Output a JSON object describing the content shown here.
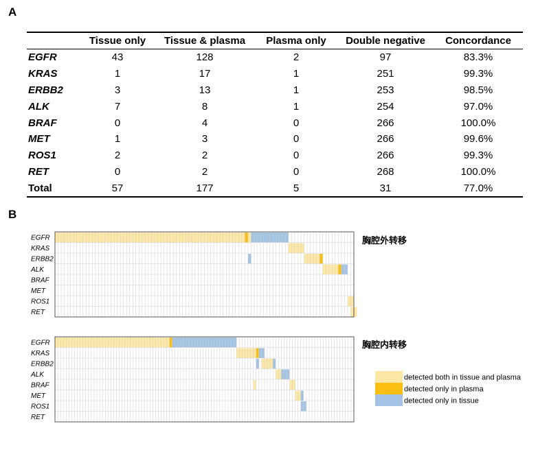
{
  "panel_a": {
    "label": "A",
    "columns": [
      "",
      "Tissue only",
      "Tissue & plasma",
      "Plasma only",
      "Double negative",
      "Concordance"
    ],
    "rows": [
      {
        "gene": "EGFR",
        "values": [
          "43",
          "128",
          "2",
          "97",
          "83.3%"
        ]
      },
      {
        "gene": "KRAS",
        "values": [
          "1",
          "17",
          "1",
          "251",
          "99.3%"
        ]
      },
      {
        "gene": "ERBB2",
        "values": [
          "3",
          "13",
          "1",
          "253",
          "98.5%"
        ]
      },
      {
        "gene": "ALK",
        "values": [
          "7",
          "8",
          "1",
          "254",
          "97.0%"
        ]
      },
      {
        "gene": "BRAF",
        "values": [
          "0",
          "4",
          "0",
          "266",
          "100.0%"
        ]
      },
      {
        "gene": "MET",
        "values": [
          "1",
          "3",
          "0",
          "266",
          "99.6%"
        ]
      },
      {
        "gene": "ROS1",
        "values": [
          "2",
          "2",
          "0",
          "266",
          "99.3%"
        ]
      },
      {
        "gene": "RET",
        "values": [
          "0",
          "2",
          "0",
          "268",
          "100.0%"
        ]
      }
    ],
    "total": {
      "label": "Total",
      "values": [
        "57",
        "177",
        "5",
        "31",
        "77.0%"
      ]
    }
  },
  "panel_b": {
    "label": "B",
    "genes": [
      "EGFR",
      "KRAS",
      "ERBB2",
      "ALK",
      "BRAF",
      "MET",
      "ROS1",
      "RET"
    ],
    "colors": {
      "both": "#fde7a4",
      "plasma": "#fbbf14",
      "tissue": "#a3c3e5",
      "grid": "#cfcfcf",
      "border": "#555555"
    },
    "groups": [
      {
        "title": "胸腔外转移",
        "n_samples": 96,
        "rows": [
          [
            [
              "both",
              0,
              61
            ],
            [
              "plasma",
              61,
              62
            ],
            [
              "both",
              62,
              63
            ],
            [
              "tissue",
              63,
              75
            ]
          ],
          [
            [
              "both",
              75,
              80
            ]
          ],
          [
            [
              "tissue",
              62,
              63
            ],
            [
              "both",
              80,
              85
            ],
            [
              "plasma",
              85,
              86
            ]
          ],
          [
            [
              "both",
              86,
              91
            ],
            [
              "plasma",
              91,
              92
            ],
            [
              "tissue",
              92,
              94
            ]
          ],
          [],
          [],
          [
            [
              "both",
              94,
              96
            ]
          ],
          [
            [
              "both",
              95,
              97
            ]
          ]
        ]
      },
      {
        "title": "胸腔内转移",
        "n_samples": 107,
        "rows": [
          [
            [
              "both",
              0,
              41
            ],
            [
              "plasma",
              41,
              42
            ],
            [
              "tissue",
              42,
              65
            ]
          ],
          [
            [
              "both",
              65,
              72
            ],
            [
              "plasma",
              72,
              73
            ],
            [
              "tissue",
              73,
              75
            ]
          ],
          [
            [
              "tissue",
              72,
              73
            ],
            [
              "both",
              74,
              78
            ],
            [
              "tissue",
              78,
              79
            ]
          ],
          [
            [
              "both",
              79,
              81
            ],
            [
              "tissue",
              81,
              84
            ]
          ],
          [
            [
              "both",
              71,
              72
            ],
            [
              "both",
              84,
              86
            ]
          ],
          [
            [
              "both",
              86,
              88
            ],
            [
              "tissue",
              88,
              89
            ]
          ],
          [
            [
              "tissue",
              88,
              90
            ]
          ],
          []
        ]
      }
    ],
    "legend": [
      {
        "key": "both",
        "label": "detected both in tissue and plasma"
      },
      {
        "key": "plasma",
        "label": "detected only in plasma"
      },
      {
        "key": "tissue",
        "label": "detected only in tissue"
      }
    ]
  }
}
